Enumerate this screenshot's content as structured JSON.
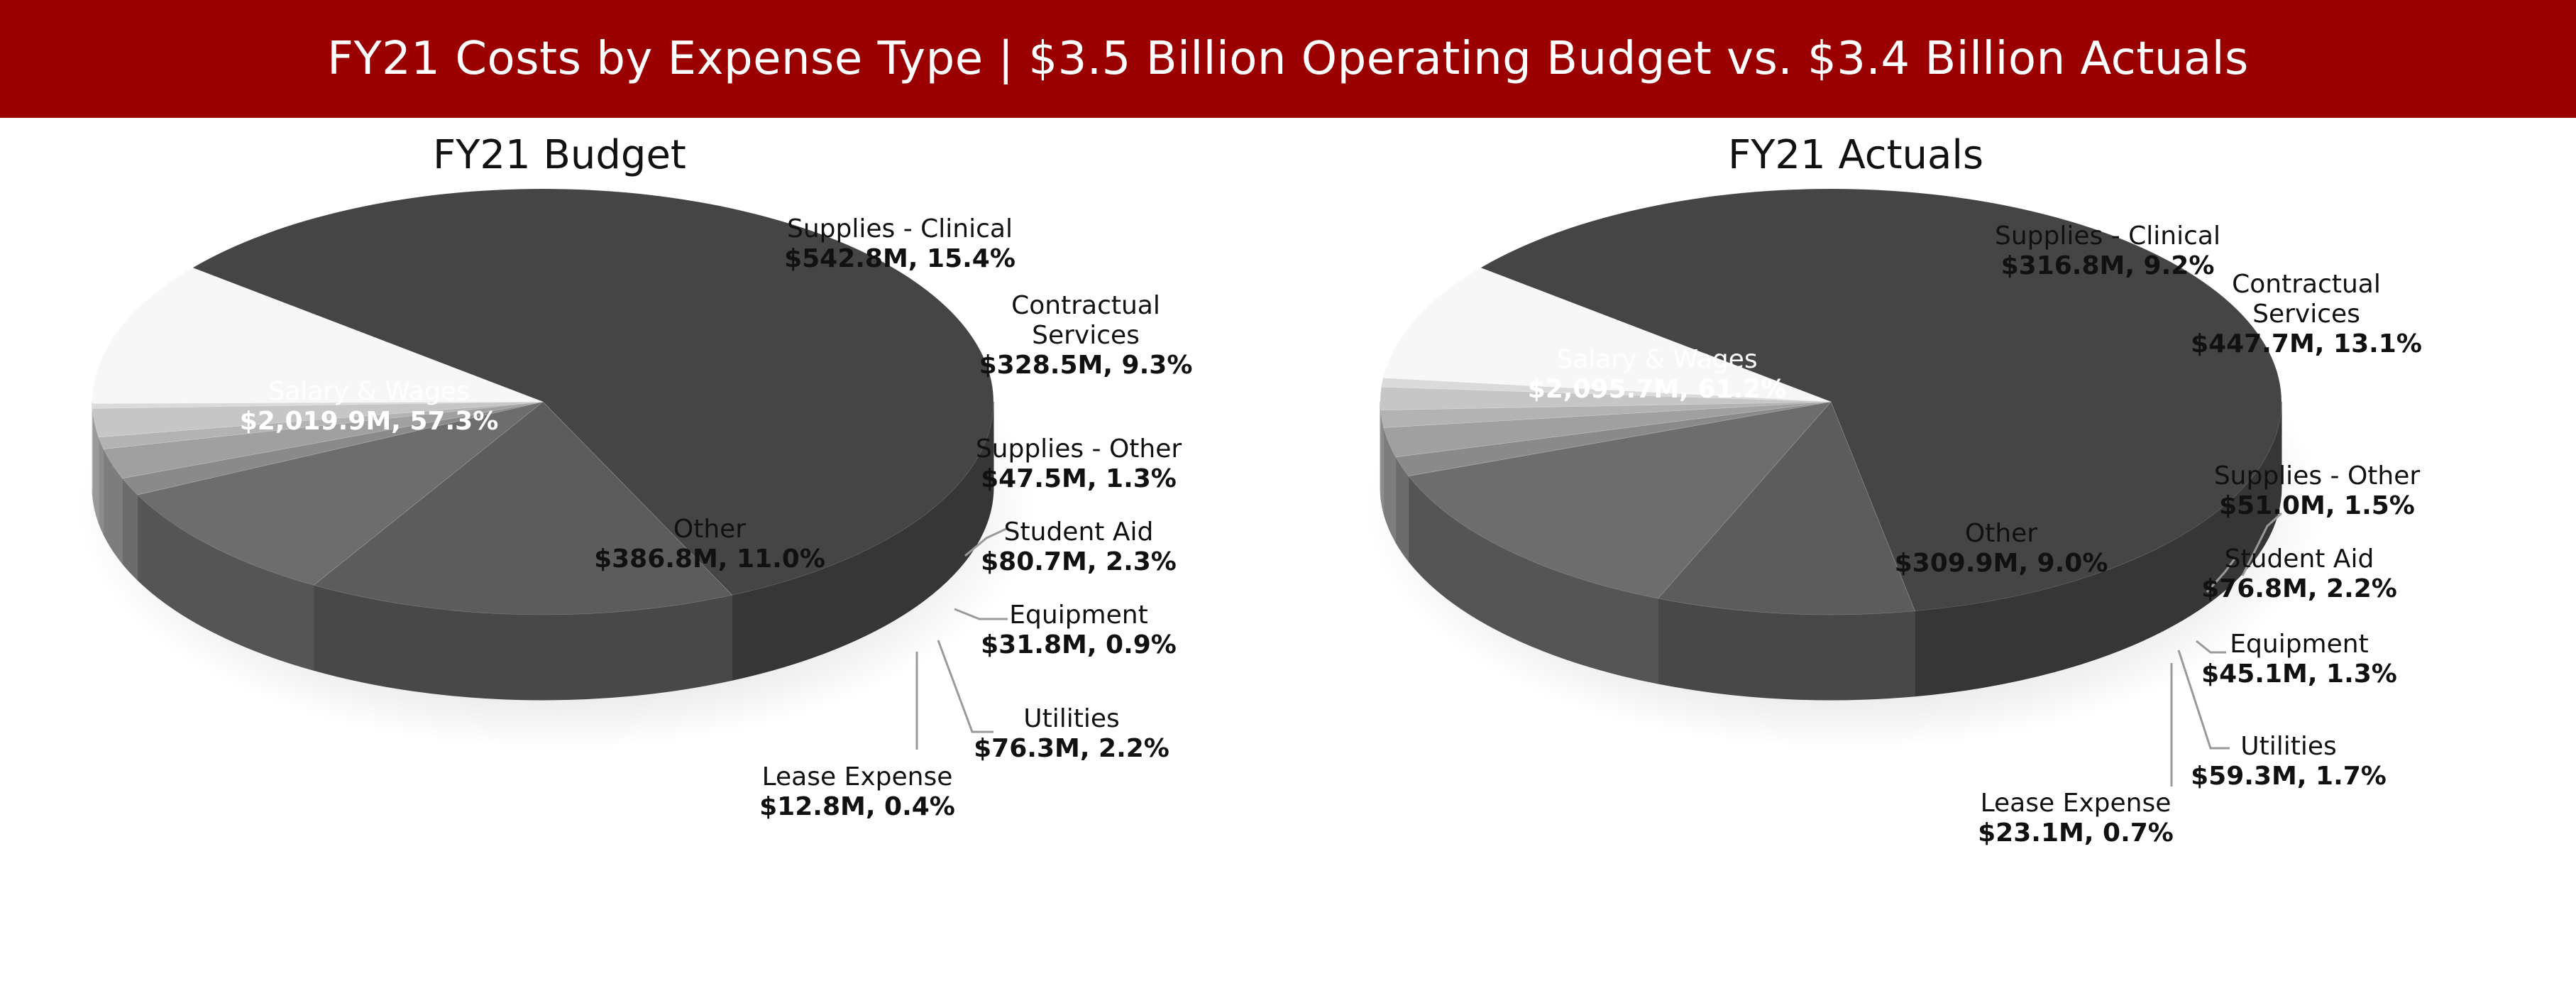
{
  "header": {
    "title": "FY21 Costs by Expense Type | $3.5 Billion Operating Budget vs. $3.4 Billion Actuals"
  },
  "colors": {
    "banner": "#9b0000",
    "salary": "#454545",
    "clinical": "#5c5c5c",
    "contractual": "#6d6d6d",
    "supplies_other": "#8a8a8a",
    "student_aid": "#a0a0a0",
    "equipment": "#b3b3b3",
    "utilities": "#c6c6c6",
    "lease": "#dadada",
    "other": "#f7f7f7"
  },
  "chart_data": [
    {
      "type": "pie",
      "title": "FY21 Budget",
      "categories": [
        "Salary & Wages",
        "Supplies - Clinical",
        "Contractual Services",
        "Supplies - Other",
        "Student Aid",
        "Equipment",
        "Utilities",
        "Lease Expense",
        "Other"
      ],
      "values": [
        2019.9,
        542.8,
        328.5,
        47.5,
        80.7,
        31.8,
        76.3,
        12.8,
        386.8
      ],
      "labels": [
        {
          "name": "Salary & Wages",
          "value": "$2,019.9M, 57.3%"
        },
        {
          "name": "Supplies - Clinical",
          "value": "$542.8M, 15.4%"
        },
        {
          "name": "Contractual Services",
          "value": "$328.5M, 9.3%"
        },
        {
          "name": "Supplies - Other",
          "value": "$47.5M, 1.3%"
        },
        {
          "name": "Student Aid",
          "value": "$80.7M, 2.3%"
        },
        {
          "name": "Equipment",
          "value": "$31.8M, 0.9%"
        },
        {
          "name": "Utilities",
          "value": "$76.3M, 2.2%"
        },
        {
          "name": "Lease Expense",
          "value": "$12.8M, 0.4%"
        },
        {
          "name": "Other",
          "value": "$386.8M, 11.0%"
        }
      ]
    },
    {
      "type": "pie",
      "title": "FY21 Actuals",
      "categories": [
        "Salary & Wages",
        "Supplies - Clinical",
        "Contractual Services",
        "Supplies - Other",
        "Student Aid",
        "Equipment",
        "Utilities",
        "Lease Expense",
        "Other"
      ],
      "values": [
        2095.7,
        316.8,
        447.7,
        51.0,
        76.8,
        45.1,
        59.3,
        23.1,
        309.9
      ],
      "labels": [
        {
          "name": "Salary & Wages",
          "value": "$2,095.7M, 61.2%"
        },
        {
          "name": "Supplies - Clinical",
          "value": "$316.8M, 9.2%"
        },
        {
          "name": "Contractual Services",
          "value": "$447.7M, 13.1%"
        },
        {
          "name": "Supplies - Other",
          "value": "$51.0M, 1.5%"
        },
        {
          "name": "Student Aid",
          "value": "$76.8M, 2.2%"
        },
        {
          "name": "Equipment",
          "value": "$45.1M, 1.3%"
        },
        {
          "name": "Utilities",
          "value": "$59.3M, 1.7%"
        },
        {
          "name": "Lease Expense",
          "value": "$23.1M, 0.7%"
        },
        {
          "name": "Other",
          "value": "$309.9M, 9.0%"
        }
      ]
    }
  ]
}
